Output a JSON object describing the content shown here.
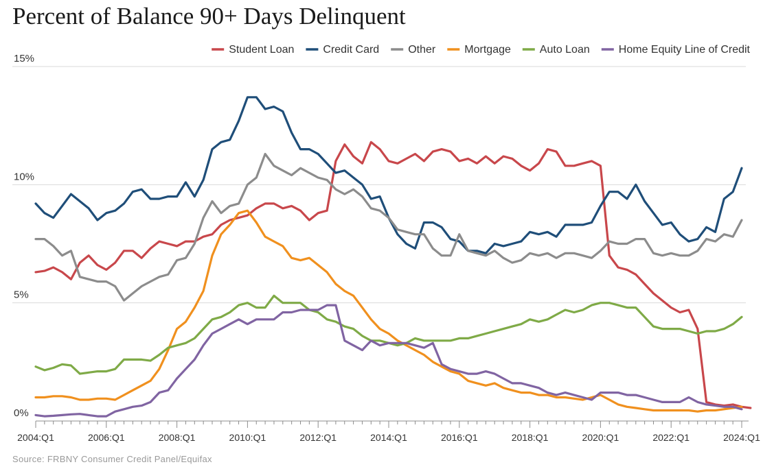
{
  "chart_data": {
    "type": "line",
    "title": "Percent of Balance 90+ Days Delinquent",
    "source": "Source: FRBNY Consumer Credit Panel/Equifax",
    "xlabel": "",
    "ylabel": "",
    "ylim": [
      0,
      15
    ],
    "grid": true,
    "legend_position": "top-right",
    "y_ticks": [
      "15%",
      "10%",
      "5%",
      "0%"
    ],
    "y_tick_values": [
      15,
      10,
      5,
      0
    ],
    "x_start": "2004:Q1",
    "x_ticks": [
      "2004:Q1",
      "2006:Q1",
      "2008:Q1",
      "2010:Q1",
      "2012:Q1",
      "2014:Q1",
      "2016:Q1",
      "2018:Q1",
      "2020:Q1",
      "2022:Q1",
      "2024:Q1"
    ],
    "series": [
      {
        "name": "Student Loan",
        "color": "#c8474b",
        "values": [
          6.3,
          6.35,
          6.5,
          6.3,
          6.0,
          6.7,
          7.0,
          6.6,
          6.4,
          6.7,
          7.2,
          7.2,
          6.9,
          7.3,
          7.6,
          7.5,
          7.4,
          7.6,
          7.6,
          7.8,
          7.9,
          8.3,
          8.5,
          8.6,
          8.7,
          9.0,
          9.2,
          9.2,
          9.0,
          9.1,
          8.9,
          8.5,
          8.8,
          8.9,
          11.0,
          11.7,
          11.2,
          10.9,
          11.8,
          11.5,
          11.0,
          10.9,
          11.1,
          11.3,
          11.0,
          11.4,
          11.5,
          11.4,
          11.0,
          11.1,
          10.9,
          11.2,
          10.9,
          11.2,
          11.1,
          10.8,
          10.6,
          10.9,
          11.5,
          11.4,
          10.8,
          10.8,
          10.9,
          11.0,
          10.8,
          7.0,
          6.5,
          6.4,
          6.2,
          5.8,
          5.4,
          5.1,
          4.8,
          4.6,
          4.7,
          3.9,
          0.8,
          0.7,
          0.65,
          0.7,
          0.6,
          0.55
        ]
      },
      {
        "name": "Credit Card",
        "color": "#1f4e79",
        "values": [
          9.2,
          8.8,
          8.6,
          9.1,
          9.6,
          9.3,
          9.0,
          8.5,
          8.8,
          8.9,
          9.2,
          9.7,
          9.8,
          9.4,
          9.4,
          9.5,
          9.5,
          10.1,
          9.5,
          10.2,
          11.5,
          11.8,
          11.9,
          12.7,
          13.7,
          13.7,
          13.2,
          13.3,
          13.1,
          12.2,
          11.5,
          11.5,
          11.3,
          10.9,
          10.5,
          10.6,
          10.3,
          10.0,
          9.4,
          9.5,
          8.6,
          7.9,
          7.5,
          7.3,
          8.4,
          8.4,
          8.2,
          7.7,
          7.6,
          7.2,
          7.2,
          7.1,
          7.5,
          7.4,
          7.5,
          7.6,
          8.0,
          7.9,
          8.0,
          7.8,
          8.3,
          8.3,
          8.3,
          8.4,
          9.1,
          9.7,
          9.7,
          9.4,
          10.0,
          9.3,
          8.8,
          8.3,
          8.4,
          7.9,
          7.6,
          7.7,
          8.2,
          8.0,
          9.4,
          9.7,
          10.7
        ]
      },
      {
        "name": "Other",
        "color": "#8c8c8c",
        "values": [
          7.7,
          7.7,
          7.4,
          7.0,
          7.2,
          6.1,
          6.0,
          5.9,
          5.9,
          5.7,
          5.1,
          5.4,
          5.7,
          5.9,
          6.1,
          6.2,
          6.8,
          6.9,
          7.5,
          8.6,
          9.3,
          8.8,
          9.1,
          9.2,
          10.0,
          10.3,
          11.3,
          10.8,
          10.6,
          10.4,
          10.7,
          10.5,
          10.3,
          10.2,
          9.8,
          9.6,
          9.8,
          9.5,
          9.0,
          8.9,
          8.6,
          8.1,
          8.0,
          7.9,
          7.9,
          7.3,
          7.0,
          7.0,
          7.9,
          7.2,
          7.1,
          7.0,
          7.2,
          6.9,
          6.7,
          6.8,
          7.1,
          7.0,
          7.1,
          6.9,
          7.1,
          7.1,
          7.0,
          6.9,
          7.2,
          7.6,
          7.5,
          7.5,
          7.7,
          7.7,
          7.1,
          7.0,
          7.1,
          7.0,
          7.0,
          7.2,
          7.7,
          7.6,
          7.9,
          7.8,
          8.5
        ]
      },
      {
        "name": "Mortgage",
        "color": "#f0901e",
        "values": [
          1.0,
          1.0,
          1.05,
          1.05,
          1.0,
          0.9,
          0.9,
          0.95,
          0.95,
          0.9,
          1.1,
          1.3,
          1.5,
          1.7,
          2.2,
          3.0,
          3.9,
          4.2,
          4.8,
          5.5,
          7.0,
          7.9,
          8.3,
          8.8,
          8.9,
          8.4,
          7.8,
          7.6,
          7.4,
          6.9,
          6.8,
          6.9,
          6.6,
          6.3,
          5.8,
          5.5,
          5.3,
          4.8,
          4.3,
          3.9,
          3.7,
          3.4,
          3.2,
          3.0,
          2.8,
          2.5,
          2.3,
          2.1,
          2.0,
          1.7,
          1.6,
          1.5,
          1.6,
          1.4,
          1.3,
          1.2,
          1.2,
          1.1,
          1.1,
          1.0,
          1.0,
          0.95,
          0.9,
          1.0,
          1.1,
          0.9,
          0.7,
          0.6,
          0.55,
          0.5,
          0.45,
          0.45,
          0.45,
          0.45,
          0.45,
          0.4,
          0.45,
          0.45,
          0.5,
          0.55,
          0.6
        ]
      },
      {
        "name": "Auto Loan",
        "color": "#7faa47",
        "values": [
          2.3,
          2.15,
          2.25,
          2.4,
          2.35,
          2.0,
          2.05,
          2.1,
          2.1,
          2.2,
          2.6,
          2.6,
          2.6,
          2.55,
          2.8,
          3.1,
          3.2,
          3.3,
          3.5,
          3.9,
          4.3,
          4.4,
          4.6,
          4.9,
          5.0,
          4.8,
          4.8,
          5.3,
          5.0,
          5.0,
          5.0,
          4.7,
          4.6,
          4.3,
          4.2,
          4.0,
          3.9,
          3.6,
          3.4,
          3.4,
          3.3,
          3.2,
          3.3,
          3.5,
          3.4,
          3.4,
          3.4,
          3.4,
          3.5,
          3.5,
          3.6,
          3.7,
          3.8,
          3.9,
          4.0,
          4.1,
          4.3,
          4.2,
          4.3,
          4.5,
          4.7,
          4.6,
          4.7,
          4.9,
          5.0,
          5.0,
          4.9,
          4.8,
          4.8,
          4.4,
          4.0,
          3.9,
          3.9,
          3.9,
          3.8,
          3.7,
          3.8,
          3.8,
          3.9,
          4.1,
          4.4
        ]
      },
      {
        "name": "Home Equity Line of Credit",
        "color": "#8064a2",
        "values": [
          0.25,
          0.2,
          0.22,
          0.25,
          0.28,
          0.3,
          0.25,
          0.2,
          0.2,
          0.4,
          0.5,
          0.6,
          0.65,
          0.8,
          1.2,
          1.3,
          1.8,
          2.2,
          2.6,
          3.2,
          3.7,
          3.9,
          4.1,
          4.3,
          4.1,
          4.3,
          4.3,
          4.3,
          4.6,
          4.6,
          4.7,
          4.7,
          4.7,
          4.9,
          4.9,
          3.4,
          3.2,
          3.0,
          3.4,
          3.2,
          3.3,
          3.3,
          3.3,
          3.2,
          3.1,
          3.3,
          2.4,
          2.2,
          2.1,
          2.0,
          2.0,
          2.1,
          2.0,
          1.8,
          1.6,
          1.6,
          1.5,
          1.4,
          1.2,
          1.1,
          1.2,
          1.1,
          1.0,
          0.9,
          1.2,
          1.2,
          1.2,
          1.1,
          1.1,
          1.0,
          0.9,
          0.8,
          0.8,
          0.8,
          1.0,
          0.8,
          0.7,
          0.65,
          0.6,
          0.6,
          0.5
        ]
      }
    ]
  }
}
